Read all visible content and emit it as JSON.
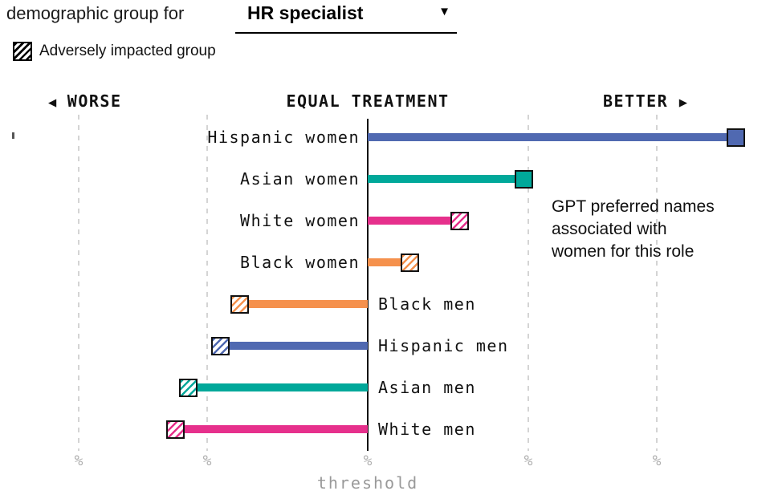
{
  "header": {
    "prefix": "demographic group for",
    "dropdown_value": "HR specialist",
    "caret_icon": "▼"
  },
  "legend": {
    "label": "Adversely impacted group",
    "swatch": "black-diagonal-hatch"
  },
  "direction_header": {
    "left_arrow": "◀",
    "worse": "WORSE",
    "equal": "EQUAL TREATMENT",
    "better": "BETTER",
    "right_arrow": "▶"
  },
  "annotation": {
    "lines": [
      "GPT preferred names",
      "associated with",
      "women for this role"
    ]
  },
  "colors": {
    "blue": "#5069b1",
    "teal": "#00a89a",
    "pink": "#e6308c",
    "orange": "#f5914d",
    "axis": "#111111",
    "gridline": "#d4d4d4",
    "tick_text": "#b0b0b0",
    "caption_text": "#999999"
  },
  "chart_data": {
    "type": "bar",
    "orientation": "horizontal-diverging",
    "title": "demographic group for HR specialist",
    "center_label": "EQUAL TREATMENT",
    "left_direction_label": "WORSE",
    "right_direction_label": "BETTER",
    "xlabel": "threshold",
    "axis": {
      "ticks_units": [
        -1.8,
        -1.0,
        0,
        1.0,
        1.8
      ],
      "tick_label": "%",
      "axis_label": "threshold",
      "note": "tick values unlabeled in source; units normalized so 1.0 = one major gridline from center"
    },
    "categories": [
      "Hispanic women",
      "Asian women",
      "White women",
      "Black women",
      "Black men",
      "Hispanic men",
      "Asian men",
      "White men"
    ],
    "values": [
      2.29,
      0.97,
      0.57,
      0.26,
      -0.8,
      -0.92,
      -1.12,
      -1.2
    ],
    "rows": [
      {
        "label": "Hispanic women",
        "value": 2.29,
        "color": "#5069b1",
        "adversely_impacted": false,
        "label_side": "left"
      },
      {
        "label": "Asian women",
        "value": 0.97,
        "color": "#00a89a",
        "adversely_impacted": false,
        "label_side": "left"
      },
      {
        "label": "White women",
        "value": 0.57,
        "color": "#e6308c",
        "adversely_impacted": true,
        "label_side": "left"
      },
      {
        "label": "Black women",
        "value": 0.26,
        "color": "#f5914d",
        "adversely_impacted": true,
        "label_side": "left"
      },
      {
        "label": "Black men",
        "value": -0.8,
        "color": "#f5914d",
        "adversely_impacted": true,
        "label_side": "right"
      },
      {
        "label": "Hispanic men",
        "value": -0.92,
        "color": "#5069b1",
        "adversely_impacted": true,
        "label_side": "right"
      },
      {
        "label": "Asian men",
        "value": -1.12,
        "color": "#00a89a",
        "adversely_impacted": true,
        "label_side": "right"
      },
      {
        "label": "White men",
        "value": -1.2,
        "color": "#e6308c",
        "adversely_impacted": true,
        "label_side": "right"
      }
    ]
  }
}
